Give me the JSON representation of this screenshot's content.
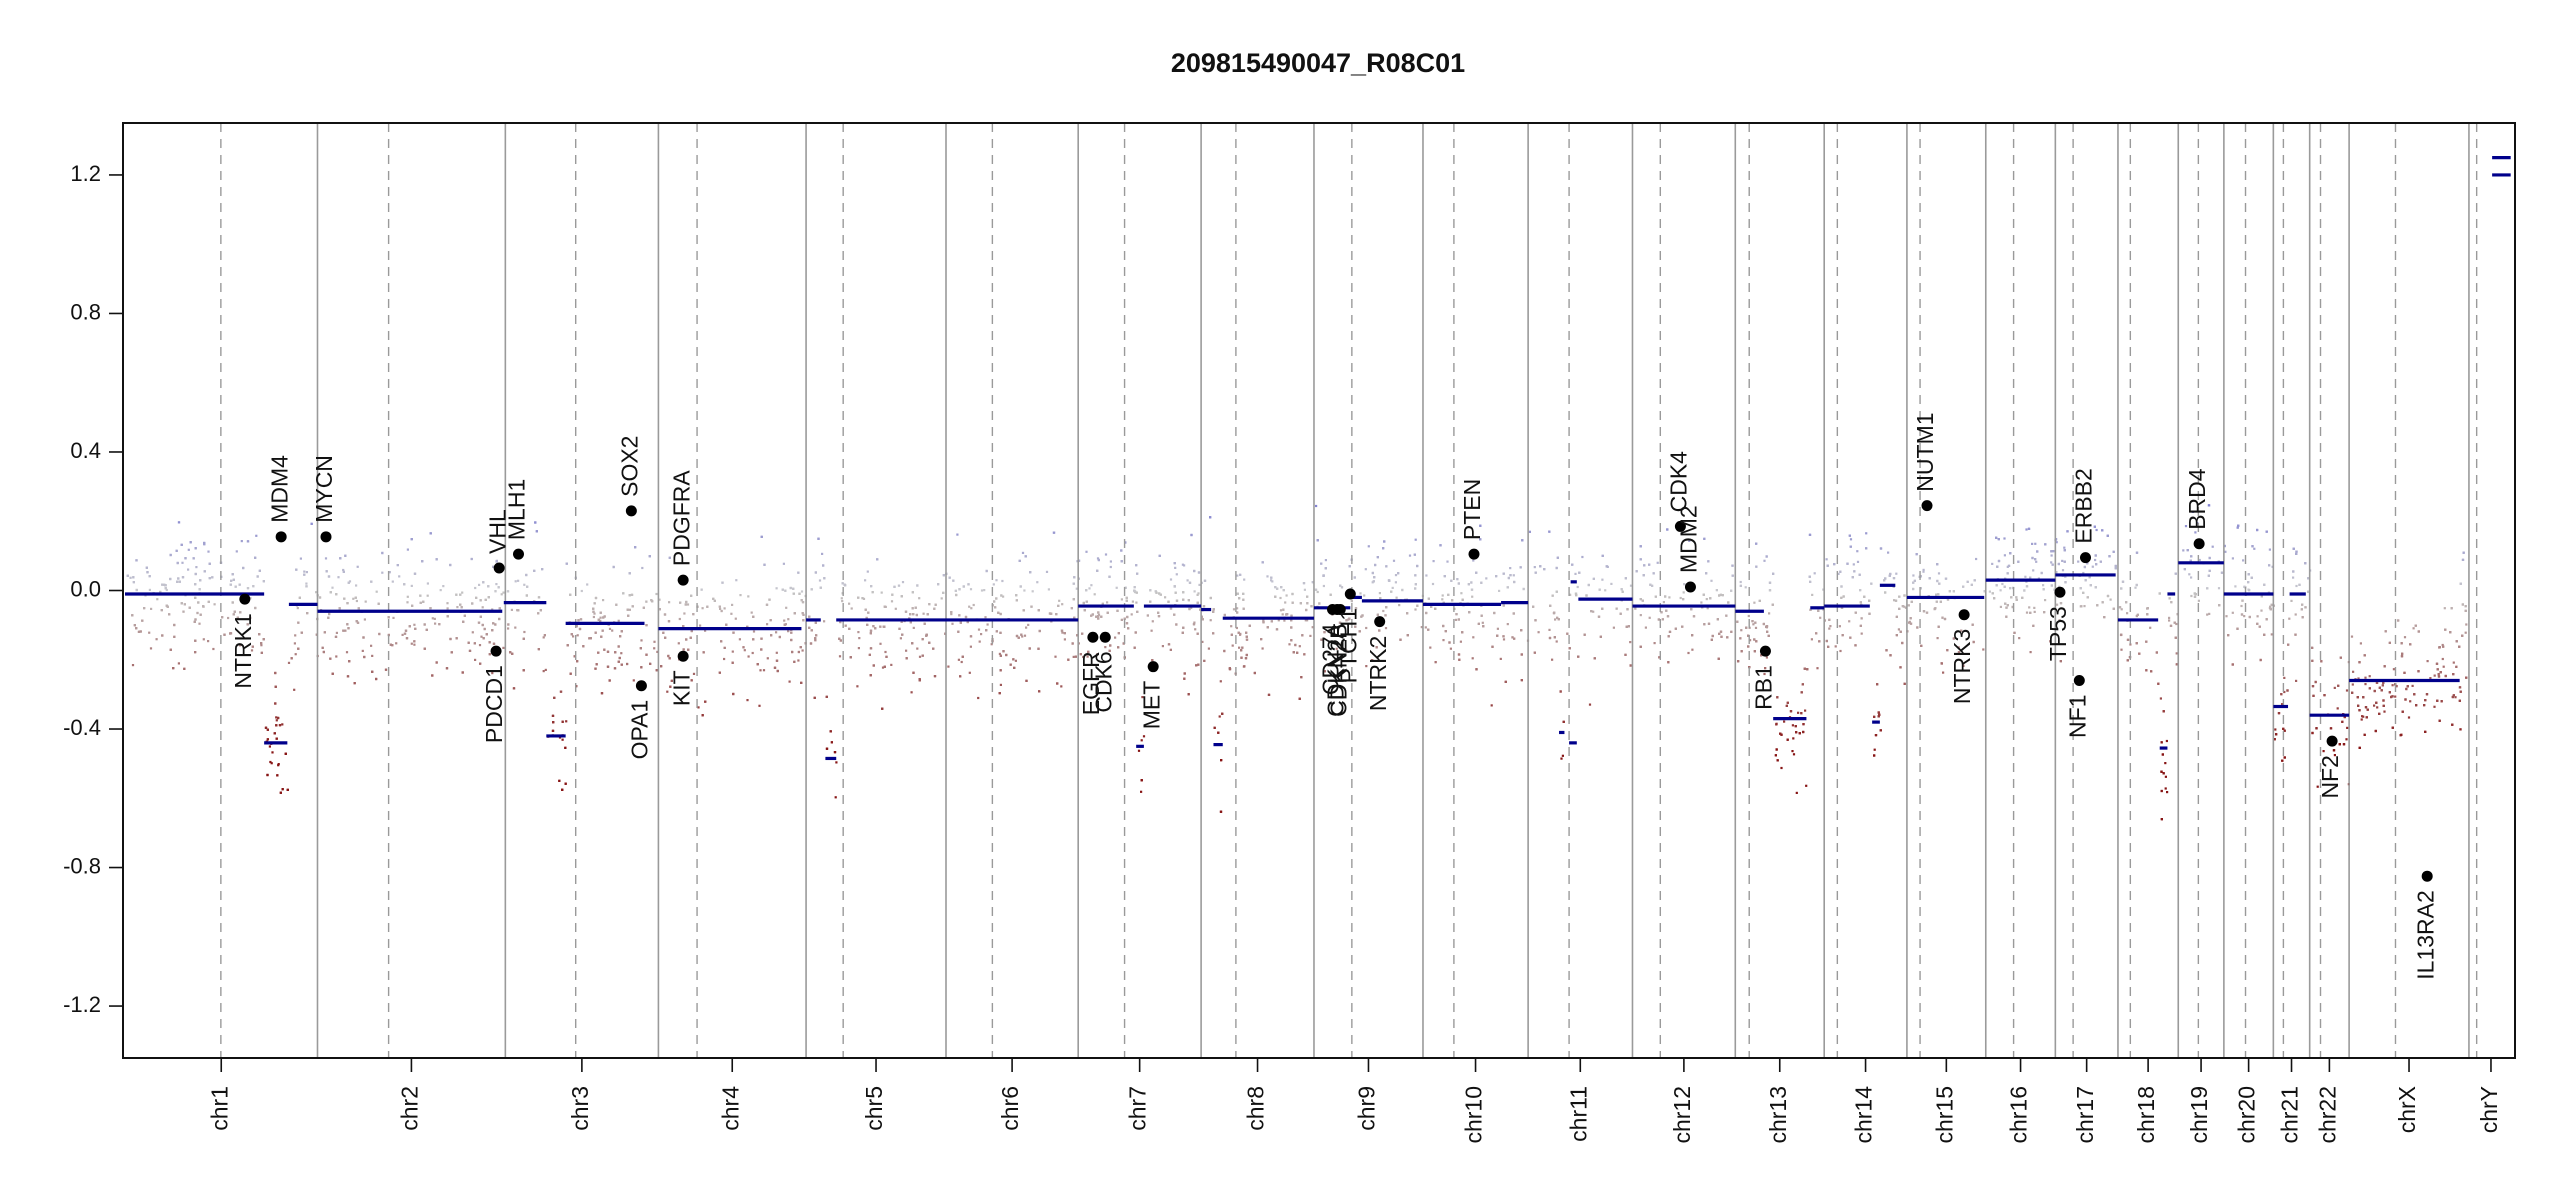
{
  "chart_data": {
    "type": "scatter",
    "title": "209815490047_R08C01",
    "xlabel": "",
    "ylabel": "",
    "ylim": [
      -1.35,
      1.35
    ],
    "yticks": [
      {
        "label": "-1.2",
        "value": -1.2
      },
      {
        "label": "-0.8",
        "value": -0.8
      },
      {
        "label": "-0.4",
        "value": -0.4
      },
      {
        "label": "0.0",
        "value": 0.0
      },
      {
        "label": "0.4",
        "value": 0.4
      },
      {
        "label": "0.8",
        "value": 0.8
      },
      {
        "label": "1.2",
        "value": 1.2
      }
    ],
    "chromosomes": [
      {
        "name": "chr1",
        "start": 0,
        "end": 249,
        "centromere": 124
      },
      {
        "name": "chr2",
        "start": 249,
        "end": 492,
        "centromere": 341
      },
      {
        "name": "chr3",
        "start": 492,
        "end": 690,
        "centromere": 583
      },
      {
        "name": "chr4",
        "start": 690,
        "end": 881,
        "centromere": 740
      },
      {
        "name": "chr5",
        "start": 881,
        "end": 1062,
        "centromere": 929
      },
      {
        "name": "chr6",
        "start": 1062,
        "end": 1233,
        "centromere": 1122
      },
      {
        "name": "chr7",
        "start": 1233,
        "end": 1392,
        "centromere": 1293
      },
      {
        "name": "chr8",
        "start": 1392,
        "end": 1538,
        "centromere": 1437
      },
      {
        "name": "chr9",
        "start": 1538,
        "end": 1679,
        "centromere": 1587
      },
      {
        "name": "chr10",
        "start": 1679,
        "end": 1815,
        "centromere": 1719
      },
      {
        "name": "chr11",
        "start": 1815,
        "end": 1950,
        "centromere": 1868
      },
      {
        "name": "chr12",
        "start": 1950,
        "end": 2083,
        "centromere": 1986
      },
      {
        "name": "chr13",
        "start": 2083,
        "end": 2198,
        "centromere": 2101
      },
      {
        "name": "chr14",
        "start": 2198,
        "end": 2305,
        "centromere": 2215
      },
      {
        "name": "chr15",
        "start": 2305,
        "end": 2407,
        "centromere": 2322
      },
      {
        "name": "chr16",
        "start": 2407,
        "end": 2497,
        "centromere": 2443
      },
      {
        "name": "chr17",
        "start": 2497,
        "end": 2578,
        "centromere": 2520
      },
      {
        "name": "chr18",
        "start": 2578,
        "end": 2656,
        "centromere": 2594
      },
      {
        "name": "chr19",
        "start": 2656,
        "end": 2715,
        "centromere": 2682
      },
      {
        "name": "chr20",
        "start": 2715,
        "end": 2779,
        "centromere": 2743
      },
      {
        "name": "chr21",
        "start": 2779,
        "end": 2826,
        "centromere": 2792
      },
      {
        "name": "chr22",
        "start": 2826,
        "end": 2877,
        "centromere": 2840
      },
      {
        "name": "chrX",
        "start": 2877,
        "end": 3032,
        "centromere": 2937
      },
      {
        "name": "chrY",
        "start": 3032,
        "end": 3089,
        "centromere": 3042
      }
    ],
    "segments": [
      {
        "x": [
          0,
          180
        ],
        "y": -0.01
      },
      {
        "x": [
          180,
          210
        ],
        "y": -0.44
      },
      {
        "x": [
          212,
          249
        ],
        "y": -0.04
      },
      {
        "x": [
          249,
          488
        ],
        "y": -0.06
      },
      {
        "x": [
          490,
          545
        ],
        "y": -0.035
      },
      {
        "x": [
          545,
          570
        ],
        "y": -0.42
      },
      {
        "x": [
          570,
          672
        ],
        "y": -0.095
      },
      {
        "x": [
          690,
          875
        ],
        "y": -0.11
      },
      {
        "x": [
          881,
          900
        ],
        "y": -0.085
      },
      {
        "x": [
          906,
          920
        ],
        "y": -0.485
      },
      {
        "x": [
          920,
          1233
        ],
        "y": -0.085
      },
      {
        "x": [
          1233,
          1305
        ],
        "y": -0.045
      },
      {
        "x": [
          1308,
          1318
        ],
        "y": -0.45
      },
      {
        "x": [
          1318,
          1392
        ],
        "y": -0.045
      },
      {
        "x": [
          1392,
          1405
        ],
        "y": -0.055
      },
      {
        "x": [
          1408,
          1420
        ],
        "y": -0.445
      },
      {
        "x": [
          1420,
          1538
        ],
        "y": -0.08
      },
      {
        "x": [
          1538,
          1585
        ],
        "y": -0.05
      },
      {
        "x": [
          1585,
          1600
        ],
        "y": -0.02
      },
      {
        "x": [
          1600,
          1679
        ],
        "y": -0.03
      },
      {
        "x": [
          1679,
          1780
        ],
        "y": -0.04
      },
      {
        "x": [
          1780,
          1815
        ],
        "y": -0.035
      },
      {
        "x": [
          1855,
          1862
        ],
        "y": -0.41
      },
      {
        "x": [
          1868,
          1878
        ],
        "y": -0.44
      },
      {
        "x": [
          1870,
          1878
        ],
        "y": 0.025
      },
      {
        "x": [
          1880,
          1950
        ],
        "y": -0.025
      },
      {
        "x": [
          1950,
          2083
        ],
        "y": -0.045
      },
      {
        "x": [
          2083,
          2120
        ],
        "y": -0.06
      },
      {
        "x": [
          2132,
          2175
        ],
        "y": -0.37
      },
      {
        "x": [
          2180,
          2198
        ],
        "y": -0.05
      },
      {
        "x": [
          2198,
          2257
        ],
        "y": -0.045
      },
      {
        "x": [
          2260,
          2270
        ],
        "y": -0.38
      },
      {
        "x": [
          2270,
          2290
        ],
        "y": 0.015
      },
      {
        "x": [
          2305,
          2405
        ],
        "y": -0.02
      },
      {
        "x": [
          2407,
          2497
        ],
        "y": 0.03
      },
      {
        "x": [
          2497,
          2575
        ],
        "y": 0.045
      },
      {
        "x": [
          2578,
          2630
        ],
        "y": -0.085
      },
      {
        "x": [
          2632,
          2642
        ],
        "y": -0.455
      },
      {
        "x": [
          2642,
          2652
        ],
        "y": -0.01
      },
      {
        "x": [
          2656,
          2715
        ],
        "y": 0.08
      },
      {
        "x": [
          2715,
          2779
        ],
        "y": -0.01
      },
      {
        "x": [
          2779,
          2798
        ],
        "y": -0.335
      },
      {
        "x": [
          2800,
          2821
        ],
        "y": -0.01
      },
      {
        "x": [
          2826,
          2877
        ],
        "y": -0.36
      },
      {
        "x": [
          2877,
          3020
        ],
        "y": -0.26
      },
      {
        "x": [
          3062,
          3086
        ],
        "y": 1.2
      },
      {
        "x": [
          3062,
          3086
        ],
        "y": 1.25
      }
    ],
    "genes": [
      {
        "name": "NTRK1",
        "x": 155,
        "y": -0.025,
        "side": "below"
      },
      {
        "name": "MDM4",
        "x": 202,
        "y": 0.155,
        "side": "above"
      },
      {
        "name": "MYCN",
        "x": 260,
        "y": 0.155,
        "side": "above"
      },
      {
        "name": "PDCD1",
        "x": 480,
        "y": -0.175,
        "side": "below"
      },
      {
        "name": "VHL",
        "x": 484,
        "y": 0.065,
        "side": "above"
      },
      {
        "name": "MLH1",
        "x": 509,
        "y": 0.105,
        "side": "above"
      },
      {
        "name": "SOX2",
        "x": 655,
        "y": 0.23,
        "side": "above"
      },
      {
        "name": "OPA1",
        "x": 668,
        "y": -0.275,
        "side": "below"
      },
      {
        "name": "PDGFRA",
        "x": 722,
        "y": 0.03,
        "side": "above"
      },
      {
        "name": "KIT",
        "x": 722,
        "y": -0.19,
        "side": "below"
      },
      {
        "name": "EGFR",
        "x": 1252,
        "y": -0.135,
        "side": "below"
      },
      {
        "name": "CDK6",
        "x": 1268,
        "y": -0.135,
        "side": "below"
      },
      {
        "name": "MET",
        "x": 1330,
        "y": -0.22,
        "side": "below"
      },
      {
        "name": "CD274",
        "x": 1562,
        "y": -0.055,
        "side": "below"
      },
      {
        "name": "CDKN2A",
        "x": 1568,
        "y": -0.055,
        "side": "below"
      },
      {
        "name": "CDKN2B",
        "x": 1572,
        "y": -0.055,
        "side": "below"
      },
      {
        "name": "PTCH1",
        "x": 1585,
        "y": -0.01,
        "side": "below"
      },
      {
        "name": "NTRK2",
        "x": 1623,
        "y": -0.09,
        "side": "below"
      },
      {
        "name": "PTEN",
        "x": 1745,
        "y": 0.105,
        "side": "above"
      },
      {
        "name": "CDK4",
        "x": 2012,
        "y": 0.185,
        "side": "above"
      },
      {
        "name": "MDM2",
        "x": 2025,
        "y": 0.01,
        "side": "above"
      },
      {
        "name": "RB1",
        "x": 2122,
        "y": -0.175,
        "side": "below"
      },
      {
        "name": "NUTM1",
        "x": 2331,
        "y": 0.245,
        "side": "above"
      },
      {
        "name": "NTRK3",
        "x": 2379,
        "y": -0.07,
        "side": "below"
      },
      {
        "name": "TP53",
        "x": 2503,
        "y": -0.005,
        "side": "below"
      },
      {
        "name": "NF1",
        "x": 2528,
        "y": -0.26,
        "side": "below"
      },
      {
        "name": "ERBB2",
        "x": 2536,
        "y": 0.095,
        "side": "above"
      },
      {
        "name": "BRD4",
        "x": 2683,
        "y": 0.135,
        "side": "above"
      },
      {
        "name": "NF2",
        "x": 2855,
        "y": -0.435,
        "side": "below"
      },
      {
        "name": "IL13RA2",
        "x": 2978,
        "y": -0.825,
        "side": "below"
      }
    ]
  }
}
